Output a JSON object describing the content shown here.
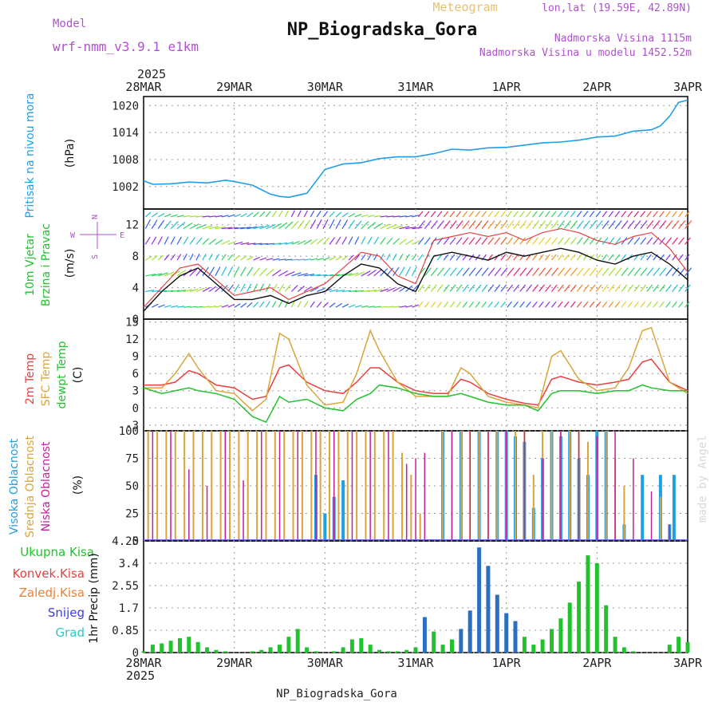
{
  "header": {
    "model_label": "Model",
    "model_name": "wrf-nmm_v3.9.1 e1km",
    "type_label": "Meteogram",
    "station": "NP_Biogradska_Gora",
    "coords": "lon,lat (19.59E, 42.89N)",
    "elevation": "Nadmorska Visina 1115m",
    "model_elevation": "Nadmorska Visina u modelu 1452.52m",
    "year": "2025",
    "footer_station": "NP_Biogradska_Gora",
    "watermark": "made by Angel"
  },
  "colors": {
    "pressure": "#1e9fe6",
    "wind": "#22c22e",
    "temp2m": "#e84040",
    "sfc": "#dca43a",
    "dew": "#22c22e",
    "high_cloud": "#1e9fe6",
    "mid_cloud": "#dca43a",
    "low_cloud": "#c020a0",
    "magenta": "#b050d0",
    "snow": "#3b3be8",
    "grad": "#28c8c8"
  },
  "time_axis": [
    "28MAR",
    "29MAR",
    "30MAR",
    "31MAR",
    "1APR",
    "2APR",
    "3APR"
  ],
  "chart_data": [
    {
      "type": "line",
      "id": "pressure",
      "ylabel": [
        "Pritisak na nivou mora",
        "(hPa)"
      ],
      "yticks": [
        "1020",
        "1014",
        "1008",
        "1002"
      ],
      "ylim": [
        997,
        1022
      ],
      "x_days": [
        0,
        0.1,
        0.3,
        0.5,
        0.7,
        0.9,
        1.0,
        1.2,
        1.4,
        1.5,
        1.6,
        1.8,
        2.0,
        2.2,
        2.4,
        2.6,
        2.8,
        3.0,
        3.2,
        3.4,
        3.6,
        3.8,
        4.0,
        4.2,
        4.4,
        4.6,
        4.8,
        5.0,
        5.2,
        5.4,
        5.6,
        5.7,
        5.8,
        5.9,
        6.0
      ],
      "values": [
        1003.3,
        1002.5,
        1002.6,
        1003.0,
        1002.8,
        1003.4,
        1003.1,
        1002.3,
        1000.3,
        999.8,
        999.6,
        1000.5,
        1005.8,
        1007.0,
        1007.3,
        1008.2,
        1008.6,
        1008.6,
        1009.3,
        1010.3,
        1010.1,
        1010.6,
        1010.7,
        1011.2,
        1011.7,
        1011.9,
        1012.3,
        1013.0,
        1013.2,
        1014.3,
        1014.6,
        1015.5,
        1017.6,
        1020.7,
        1021.2
      ],
      "grid": true
    },
    {
      "type": "line",
      "id": "wind",
      "ylabel": [
        "10m Vjetar",
        "Brzina i Pravac",
        "(m/s)"
      ],
      "yticks": [
        "12",
        "8",
        "4",
        "0"
      ],
      "ylim": [
        0,
        14
      ],
      "compass": [
        "N",
        "W",
        "E",
        "S"
      ],
      "x_days": [
        0,
        0.2,
        0.4,
        0.6,
        0.8,
        1.0,
        1.2,
        1.4,
        1.6,
        1.8,
        2.0,
        2.2,
        2.4,
        2.6,
        2.8,
        3.0,
        3.2,
        3.4,
        3.6,
        3.8,
        4.0,
        4.2,
        4.4,
        4.6,
        4.8,
        5.0,
        5.2,
        5.4,
        5.6,
        5.8,
        6.0
      ],
      "series": [
        {
          "name": "mean",
          "values": [
            1.0,
            3.5,
            5.5,
            6.5,
            4.5,
            2.5,
            2.5,
            3.0,
            2.0,
            3.0,
            3.5,
            5.5,
            7.0,
            6.5,
            4.5,
            3.5,
            8.0,
            8.5,
            8.0,
            7.5,
            8.5,
            8.0,
            8.5,
            9.0,
            8.5,
            7.5,
            7.0,
            8.0,
            8.5,
            7.0,
            5.0
          ]
        },
        {
          "name": "gust",
          "values": [
            1.5,
            4.0,
            6.5,
            7.0,
            5.0,
            3.0,
            3.5,
            4.0,
            2.5,
            3.5,
            4.5,
            6.5,
            8.5,
            8.0,
            5.5,
            4.5,
            10.0,
            10.5,
            11.0,
            10.5,
            11.0,
            10.0,
            11.0,
            11.5,
            11.0,
            10.0,
            9.5,
            10.5,
            11.0,
            9.0,
            6.0
          ]
        }
      ],
      "grid": true
    },
    {
      "type": "line",
      "id": "temperature",
      "ylabel": [
        "2m Temp",
        "SFC Temp",
        "dewpt Temp",
        "(C)"
      ],
      "yticks": [
        "15",
        "12",
        "9",
        "6",
        "3",
        "0",
        "-3"
      ],
      "ylim": [
        -4,
        15.5
      ],
      "x_days": [
        0,
        0.2,
        0.35,
        0.5,
        0.6,
        0.8,
        1.0,
        1.2,
        1.35,
        1.5,
        1.6,
        1.8,
        2.0,
        2.2,
        2.35,
        2.5,
        2.6,
        2.8,
        3.0,
        3.2,
        3.35,
        3.5,
        3.6,
        3.8,
        4.0,
        4.2,
        4.35,
        4.5,
        4.6,
        4.8,
        5.0,
        5.2,
        5.35,
        5.5,
        5.6,
        5.8,
        6.0
      ],
      "series": [
        {
          "name": "2m Temp",
          "color": "#e84040",
          "values": [
            4.0,
            4.0,
            4.5,
            6.5,
            6.0,
            4.0,
            3.5,
            1.5,
            2.0,
            7.0,
            7.5,
            4.5,
            3.0,
            2.5,
            4.5,
            7.0,
            7.0,
            4.5,
            3.0,
            2.5,
            2.5,
            5.0,
            4.5,
            2.5,
            1.5,
            0.8,
            0.5,
            5.0,
            5.5,
            4.5,
            4.0,
            4.5,
            5.0,
            8.0,
            8.5,
            4.5,
            3.0
          ]
        },
        {
          "name": "SFC Temp",
          "color": "#dca43a",
          "values": [
            3.5,
            3.5,
            6.0,
            9.5,
            7.0,
            3.0,
            2.5,
            -0.5,
            1.5,
            13.0,
            12.0,
            4.0,
            0.5,
            1.0,
            6.0,
            13.5,
            10.0,
            4.5,
            2.0,
            2.0,
            2.0,
            7.0,
            6.0,
            2.0,
            1.0,
            0.5,
            0.0,
            9.0,
            10.0,
            5.0,
            3.0,
            3.5,
            7.0,
            13.5,
            14.0,
            4.5,
            2.5
          ]
        },
        {
          "name": "dewpt Temp",
          "color": "#22c22e",
          "values": [
            3.5,
            2.5,
            3.0,
            3.5,
            3.0,
            2.5,
            1.5,
            -1.5,
            -2.5,
            2.0,
            1.0,
            1.5,
            0.0,
            -0.5,
            1.5,
            2.5,
            4.0,
            3.5,
            2.5,
            2.0,
            2.0,
            2.5,
            2.0,
            1.0,
            0.5,
            0.5,
            -0.5,
            2.5,
            3.0,
            3.0,
            2.5,
            3.0,
            3.0,
            4.0,
            3.5,
            3.0,
            3.0
          ]
        }
      ],
      "grid": true
    },
    {
      "type": "bar",
      "id": "clouds",
      "ylabel": [
        "Visoka Oblacnost",
        "Srednja Oblacnost",
        "Niska Oblacnost",
        "(%)"
      ],
      "yticks": [
        "100",
        "75",
        "50",
        "25",
        "0"
      ],
      "ylim": [
        0,
        100
      ],
      "series": [
        {
          "name": "Visoka Oblacnost",
          "color": "#1e9fe6",
          "x_days": [
            1.9,
            2.0,
            2.1,
            2.2,
            3.3,
            3.5,
            3.7,
            3.9,
            4.0,
            4.1,
            4.2,
            4.3,
            4.4,
            4.5,
            4.6,
            4.7,
            4.8,
            4.9,
            5.0,
            5.1,
            5.3,
            5.5,
            5.7,
            5.8,
            5.85
          ],
          "values": [
            60,
            25,
            40,
            55,
            100,
            100,
            100,
            100,
            100,
            95,
            90,
            30,
            75,
            100,
            95,
            100,
            75,
            60,
            100,
            100,
            15,
            60,
            60,
            15,
            60
          ]
        },
        {
          "name": "Srednja Oblacnost",
          "color": "#dca43a",
          "x_days": [
            0.05,
            0.15,
            0.25,
            0.35,
            0.45,
            0.55,
            0.65,
            0.75,
            0.85,
            0.95,
            1.05,
            1.15,
            1.25,
            1.35,
            1.45,
            1.55,
            1.65,
            1.75,
            1.85,
            1.95,
            2.05,
            2.15,
            2.25,
            2.35,
            2.45,
            2.55,
            2.65,
            2.75,
            2.85,
            2.95,
            3.05,
            3.3,
            3.4,
            3.5,
            3.6,
            3.7,
            3.8,
            3.9,
            4.0,
            4.1,
            4.2,
            4.3,
            4.4,
            4.5,
            4.6,
            4.7,
            4.8,
            4.9,
            5.0,
            5.1,
            5.2,
            5.3,
            5.7
          ],
          "values": [
            100,
            100,
            100,
            100,
            100,
            100,
            100,
            100,
            100,
            100,
            100,
            100,
            100,
            100,
            100,
            100,
            100,
            100,
            100,
            100,
            100,
            100,
            100,
            100,
            100,
            100,
            100,
            100,
            80,
            60,
            25,
            100,
            100,
            100,
            100,
            100,
            100,
            100,
            100,
            100,
            100,
            60,
            100,
            100,
            100,
            100,
            100,
            90,
            75,
            100,
            75,
            50,
            40
          ]
        },
        {
          "name": "Niska Oblacnost",
          "color": "#c020a0",
          "x_days": [
            0.1,
            0.3,
            0.5,
            0.7,
            0.9,
            1.1,
            1.3,
            1.5,
            1.7,
            1.9,
            2.1,
            2.3,
            2.5,
            2.7,
            2.9,
            3.0,
            3.1,
            3.4,
            3.6,
            3.8,
            4.0,
            4.2,
            4.4,
            4.6,
            4.8,
            5.0,
            5.2,
            5.4,
            5.6,
            5.8
          ],
          "values": [
            100,
            100,
            65,
            50,
            100,
            55,
            100,
            100,
            100,
            100,
            100,
            100,
            100,
            100,
            70,
            75,
            80,
            100,
            100,
            100,
            100,
            100,
            75,
            100,
            100,
            95,
            100,
            75,
            45,
            15
          ]
        }
      ],
      "grid": true
    },
    {
      "type": "bar",
      "id": "precip",
      "ylabel": [
        "1hr Precip (mm)"
      ],
      "legend": [
        "Ukupna Kisa",
        "Konvek.Kisa",
        "Zaledj.Kisa",
        "Snijeg",
        "Grad"
      ],
      "yticks": [
        "4.25",
        "3.4",
        "2.55",
        "1.7",
        "0.85",
        "0"
      ],
      "ylim": [
        0,
        4.25
      ],
      "x_days": [
        0.0,
        0.1,
        0.2,
        0.3,
        0.4,
        0.5,
        0.6,
        0.7,
        0.8,
        0.9,
        1.0,
        1.1,
        1.2,
        1.3,
        1.4,
        1.5,
        1.6,
        1.7,
        1.8,
        1.9,
        2.0,
        2.1,
        2.2,
        2.3,
        2.4,
        2.5,
        2.6,
        2.7,
        2.8,
        2.9,
        3.0,
        3.1,
        3.2,
        3.3,
        3.4,
        3.5,
        3.6,
        3.7,
        3.8,
        3.9,
        4.0,
        4.1,
        4.2,
        4.3,
        4.4,
        4.5,
        4.6,
        4.7,
        4.8,
        4.9,
        5.0,
        5.1,
        5.2,
        5.3,
        5.4,
        5.5,
        5.6,
        5.7,
        5.8,
        5.9,
        6.0
      ],
      "values": [
        0.05,
        0.3,
        0.35,
        0.45,
        0.55,
        0.6,
        0.4,
        0.2,
        0.1,
        0.05,
        0.0,
        0.0,
        0.05,
        0.1,
        0.2,
        0.3,
        0.6,
        0.9,
        0.2,
        0.05,
        0.0,
        0.05,
        0.2,
        0.5,
        0.55,
        0.3,
        0.1,
        0.05,
        0.05,
        0.1,
        0.2,
        1.35,
        0.8,
        0.3,
        0.5,
        0.9,
        1.6,
        4.0,
        3.3,
        2.2,
        1.5,
        1.2,
        0.6,
        0.3,
        0.5,
        0.9,
        1.3,
        1.9,
        2.7,
        3.7,
        3.4,
        1.8,
        0.6,
        0.2,
        0.05,
        0.0,
        0.0,
        0.0,
        0.3,
        0.6,
        0.4
      ],
      "grid": true
    }
  ]
}
